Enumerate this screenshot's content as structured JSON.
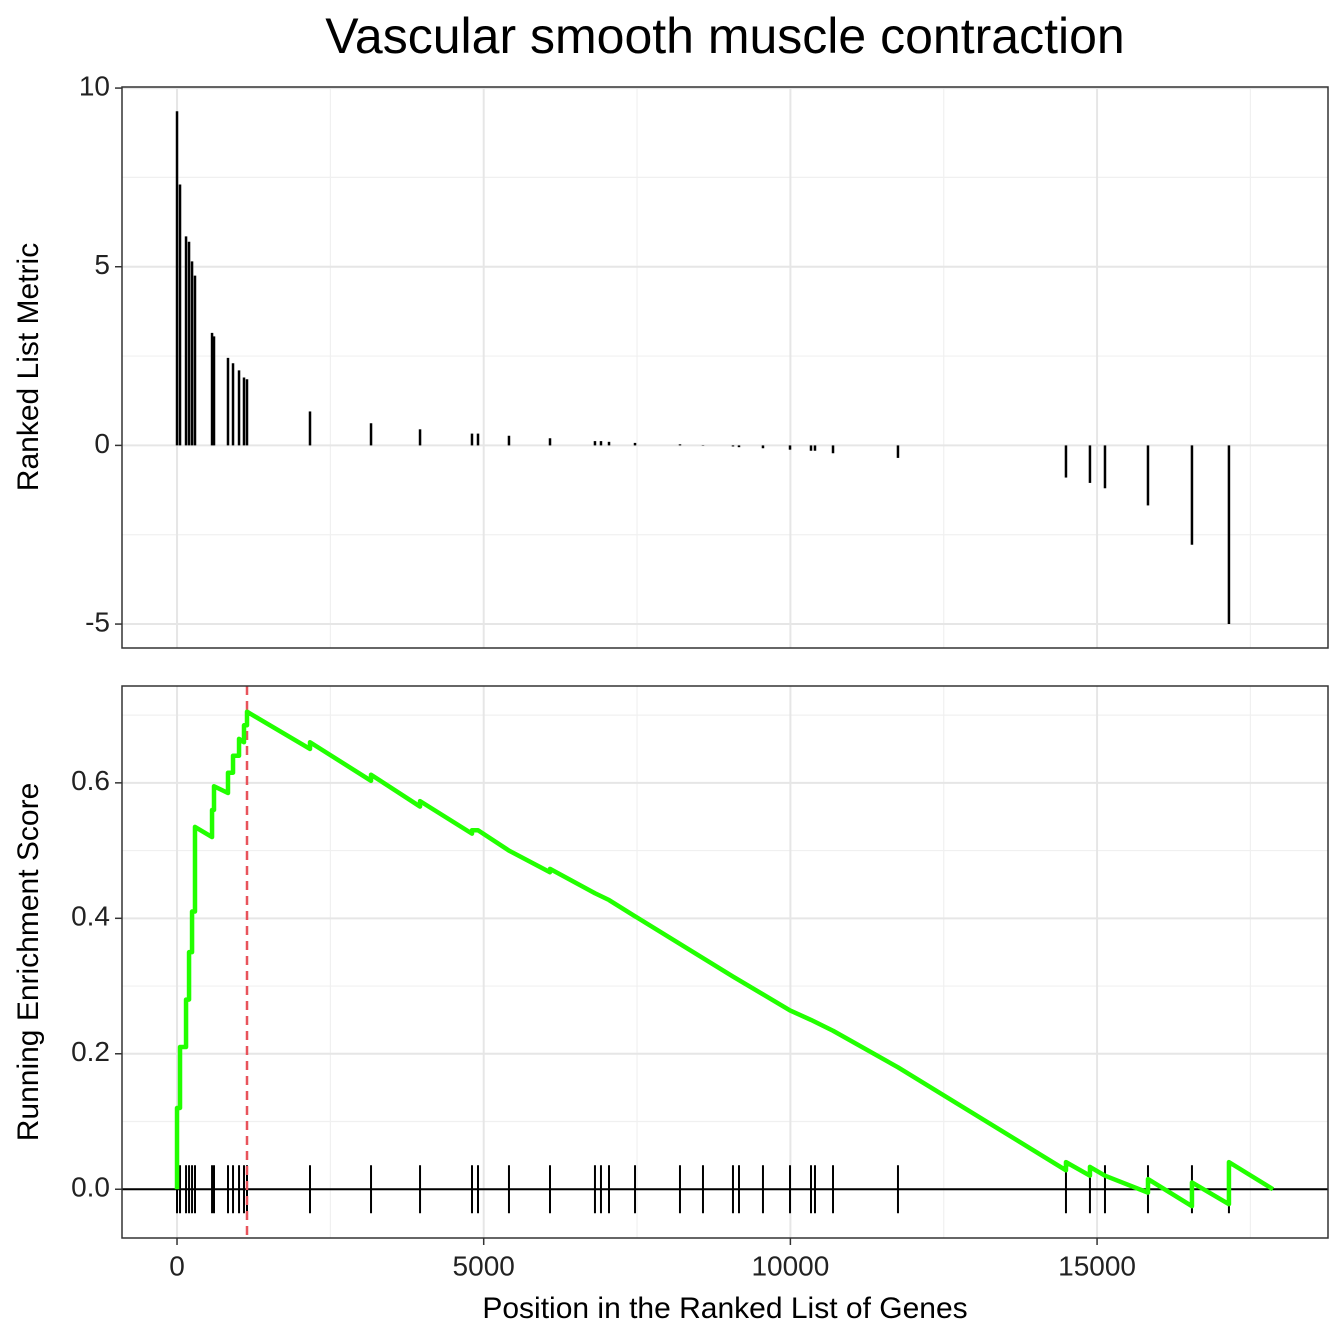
{
  "chart_data": [
    {
      "type": "bar",
      "title": "Vascular smooth muscle contraction",
      "y_label": "Ranked List Metric",
      "x": [
        0,
        49,
        147,
        196,
        245,
        293,
        571,
        603,
        831,
        913,
        1011,
        1092,
        1141,
        2168,
        3163,
        3962,
        4809,
        4907,
        5412,
        6081,
        6814,
        6912,
        7043,
        7467,
        8200,
        8575,
        9064,
        9162,
        9553,
        9994,
        10336,
        10401,
        10695,
        11754,
        14493,
        14884,
        15129,
        15830,
        16547,
        17150
      ],
      "values": [
        9.35,
        7.3,
        5.85,
        5.7,
        5.15,
        4.75,
        3.15,
        3.05,
        2.45,
        2.3,
        2.1,
        1.9,
        1.85,
        0.95,
        0.62,
        0.45,
        0.33,
        0.33,
        0.27,
        0.2,
        0.12,
        0.12,
        0.1,
        0.07,
        0.03,
        0.01,
        -0.03,
        -0.05,
        -0.08,
        -0.12,
        -0.15,
        -0.15,
        -0.22,
        -0.35,
        -0.9,
        -1.05,
        -1.2,
        -1.68,
        -2.78,
        -5.0
      ],
      "color": "#000000",
      "xlim": [
        -897,
        18765
      ],
      "ylim": [
        -5.67,
        10.03
      ],
      "yticks": [
        -5,
        0,
        5,
        10
      ],
      "grid": true
    },
    {
      "type": "line",
      "x_label": "Position in the Ranked List of Genes",
      "y_label": "Running Enrichment Score",
      "x": [
        0,
        0,
        49,
        49,
        147,
        147,
        196,
        196,
        245,
        245,
        293,
        293,
        571,
        571,
        603,
        603,
        831,
        831,
        913,
        913,
        1011,
        1011,
        1092,
        1092,
        1141,
        1141,
        2168,
        2168,
        3163,
        3163,
        3962,
        3962,
        4809,
        4809,
        4907,
        5412,
        6081,
        6081,
        6814,
        7043,
        7467,
        9064,
        9994,
        10336,
        10695,
        11754,
        14493,
        14493,
        14884,
        14884,
        15129,
        15830,
        15830,
        16547,
        16547,
        17150,
        17150,
        17868
      ],
      "values": [
        0,
        0.12,
        0.12,
        0.21,
        0.21,
        0.28,
        0.28,
        0.35,
        0.35,
        0.41,
        0.41,
        0.535,
        0.52,
        0.56,
        0.56,
        0.595,
        0.585,
        0.615,
        0.615,
        0.64,
        0.64,
        0.665,
        0.66,
        0.685,
        0.685,
        0.705,
        0.65,
        0.66,
        0.603,
        0.612,
        0.565,
        0.573,
        0.525,
        0.53,
        0.53,
        0.5,
        0.468,
        0.473,
        0.437,
        0.427,
        0.403,
        0.314,
        0.264,
        0.25,
        0.234,
        0.18,
        0.028,
        0.04,
        0.02,
        0.033,
        0.02,
        -0.005,
        0.015,
        -0.025,
        0.01,
        -0.022,
        0.04,
        0
      ],
      "color": "#22ff00",
      "vline": 1141,
      "vline_color": "#e8535b",
      "hline": 0,
      "xlim": [
        -897,
        18765
      ],
      "ylim": [
        -0.072,
        0.743
      ],
      "xticks": [
        0,
        5000,
        10000,
        15000
      ],
      "yticks": [
        {
          "value": 0,
          "label": "0.0"
        },
        {
          "value": 0.2,
          "label": "0.2"
        },
        {
          "value": 0.4,
          "label": "0.4"
        },
        {
          "value": 0.6,
          "label": "0.6"
        }
      ],
      "grid": true
    }
  ]
}
